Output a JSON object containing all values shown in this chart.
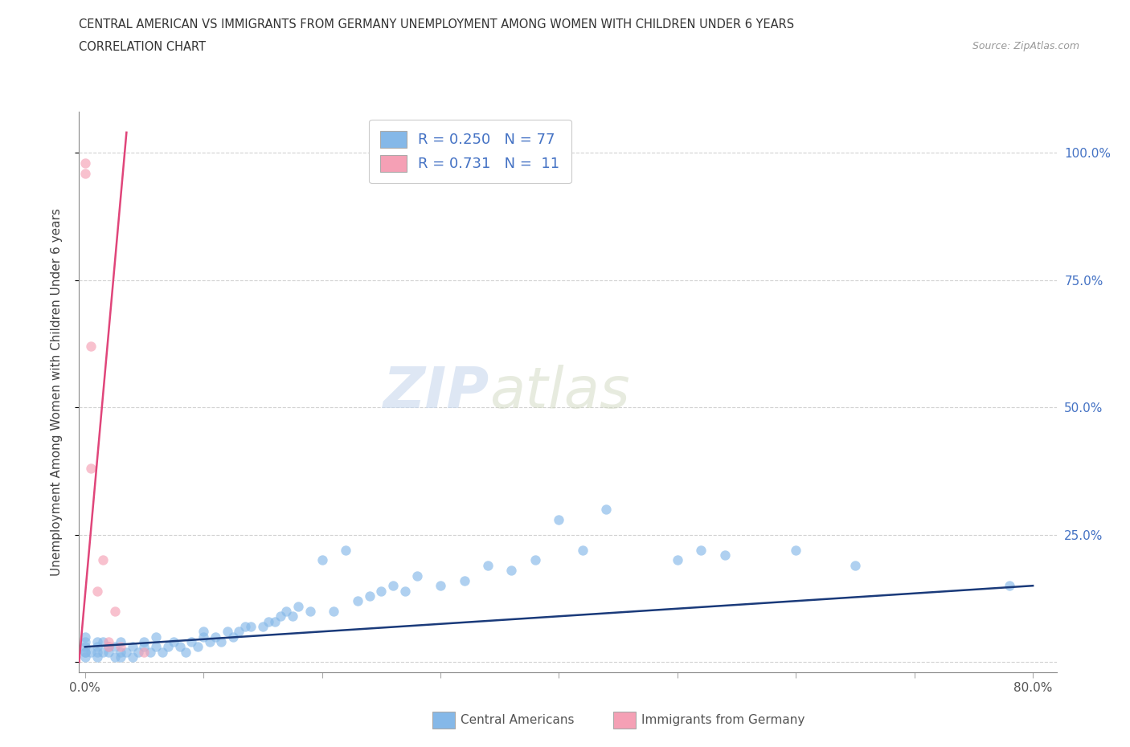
{
  "title_line1": "CENTRAL AMERICAN VS IMMIGRANTS FROM GERMANY UNEMPLOYMENT AMONG WOMEN WITH CHILDREN UNDER 6 YEARS",
  "title_line2": "CORRELATION CHART",
  "source": "Source: ZipAtlas.com",
  "ylabel": "Unemployment Among Women with Children Under 6 years",
  "xlim": [
    -0.005,
    0.82
  ],
  "ylim": [
    -0.02,
    1.08
  ],
  "xtick_positions": [
    0.0,
    0.1,
    0.2,
    0.3,
    0.4,
    0.5,
    0.6,
    0.7,
    0.8
  ],
  "xticklabels": [
    "0.0%",
    "",
    "",
    "",
    "",
    "",
    "",
    "",
    "80.0%"
  ],
  "ytick_positions": [
    0.0,
    0.25,
    0.5,
    0.75,
    1.0
  ],
  "yticklabels_right": [
    "",
    "25.0%",
    "50.0%",
    "75.0%",
    "100.0%"
  ],
  "blue_color": "#85b8e8",
  "pink_color": "#f5a0b5",
  "blue_line_color": "#1a3a7a",
  "pink_line_color": "#e0457a",
  "legend_R_blue": "0.250",
  "legend_N_blue": "77",
  "legend_R_pink": "0.731",
  "legend_N_pink": "11",
  "watermark_zip": "ZIP",
  "watermark_atlas": "atlas",
  "background_color": "#ffffff",
  "grid_color": "#cccccc",
  "blue_scatter_x": [
    0.0,
    0.0,
    0.0,
    0.0,
    0.0,
    0.0,
    0.005,
    0.01,
    0.01,
    0.01,
    0.01,
    0.015,
    0.015,
    0.02,
    0.02,
    0.025,
    0.025,
    0.03,
    0.03,
    0.03,
    0.035,
    0.04,
    0.04,
    0.045,
    0.05,
    0.05,
    0.055,
    0.06,
    0.06,
    0.065,
    0.07,
    0.075,
    0.08,
    0.085,
    0.09,
    0.095,
    0.1,
    0.1,
    0.105,
    0.11,
    0.115,
    0.12,
    0.125,
    0.13,
    0.135,
    0.14,
    0.15,
    0.155,
    0.16,
    0.165,
    0.17,
    0.175,
    0.18,
    0.19,
    0.2,
    0.21,
    0.22,
    0.23,
    0.24,
    0.25,
    0.26,
    0.27,
    0.28,
    0.3,
    0.32,
    0.34,
    0.36,
    0.38,
    0.4,
    0.42,
    0.44,
    0.5,
    0.52,
    0.54,
    0.6,
    0.65,
    0.78
  ],
  "blue_scatter_y": [
    0.01,
    0.02,
    0.02,
    0.03,
    0.04,
    0.05,
    0.02,
    0.01,
    0.02,
    0.03,
    0.04,
    0.02,
    0.04,
    0.02,
    0.03,
    0.01,
    0.03,
    0.01,
    0.02,
    0.04,
    0.02,
    0.01,
    0.03,
    0.02,
    0.03,
    0.04,
    0.02,
    0.03,
    0.05,
    0.02,
    0.03,
    0.04,
    0.03,
    0.02,
    0.04,
    0.03,
    0.05,
    0.06,
    0.04,
    0.05,
    0.04,
    0.06,
    0.05,
    0.06,
    0.07,
    0.07,
    0.07,
    0.08,
    0.08,
    0.09,
    0.1,
    0.09,
    0.11,
    0.1,
    0.2,
    0.1,
    0.22,
    0.12,
    0.13,
    0.14,
    0.15,
    0.14,
    0.17,
    0.15,
    0.16,
    0.19,
    0.18,
    0.2,
    0.28,
    0.22,
    0.3,
    0.2,
    0.22,
    0.21,
    0.22,
    0.19,
    0.15
  ],
  "pink_scatter_x": [
    0.0,
    0.0,
    0.005,
    0.005,
    0.01,
    0.015,
    0.02,
    0.02,
    0.025,
    0.03,
    0.05
  ],
  "pink_scatter_y": [
    0.96,
    0.98,
    0.38,
    0.62,
    0.14,
    0.2,
    0.03,
    0.04,
    0.1,
    0.03,
    0.02
  ],
  "blue_trend_x": [
    0.0,
    0.8
  ],
  "blue_trend_y": [
    0.03,
    0.15
  ],
  "pink_trend_x": [
    -0.005,
    0.035
  ],
  "pink_trend_y": [
    0.0,
    1.04
  ]
}
